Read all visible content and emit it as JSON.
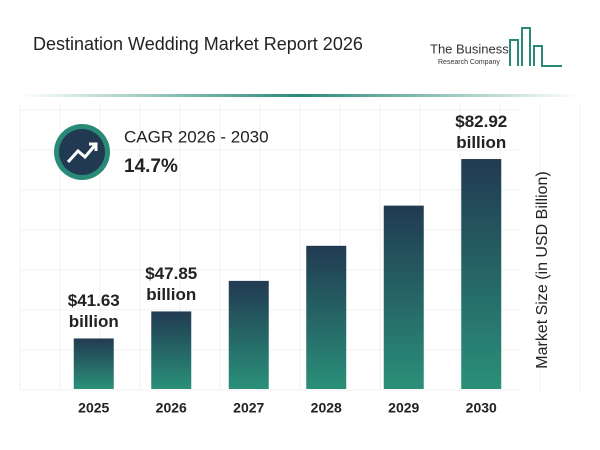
{
  "chart_data": {
    "type": "bar",
    "title": "Destination Wedding Market Report 2026",
    "categories": [
      "2025",
      "2026",
      "2027",
      "2028",
      "2029",
      "2030"
    ],
    "values": [
      41.63,
      47.85,
      54.88,
      62.95,
      72.2,
      82.92
    ],
    "value_labels": [
      "$41.63 billion",
      "$47.85 billion",
      null,
      null,
      null,
      "$82.92 billion"
    ],
    "ylabel": "Market Size (in USD Billion)",
    "ylim": [
      30,
      85
    ],
    "color_top": "#213a52",
    "color_bottom": "#2a9079",
    "cagr_label": "CAGR 2026 - 2030",
    "cagr_value": "14.7%"
  },
  "logo": {
    "line1": "The Business",
    "line2": "Research Company"
  }
}
